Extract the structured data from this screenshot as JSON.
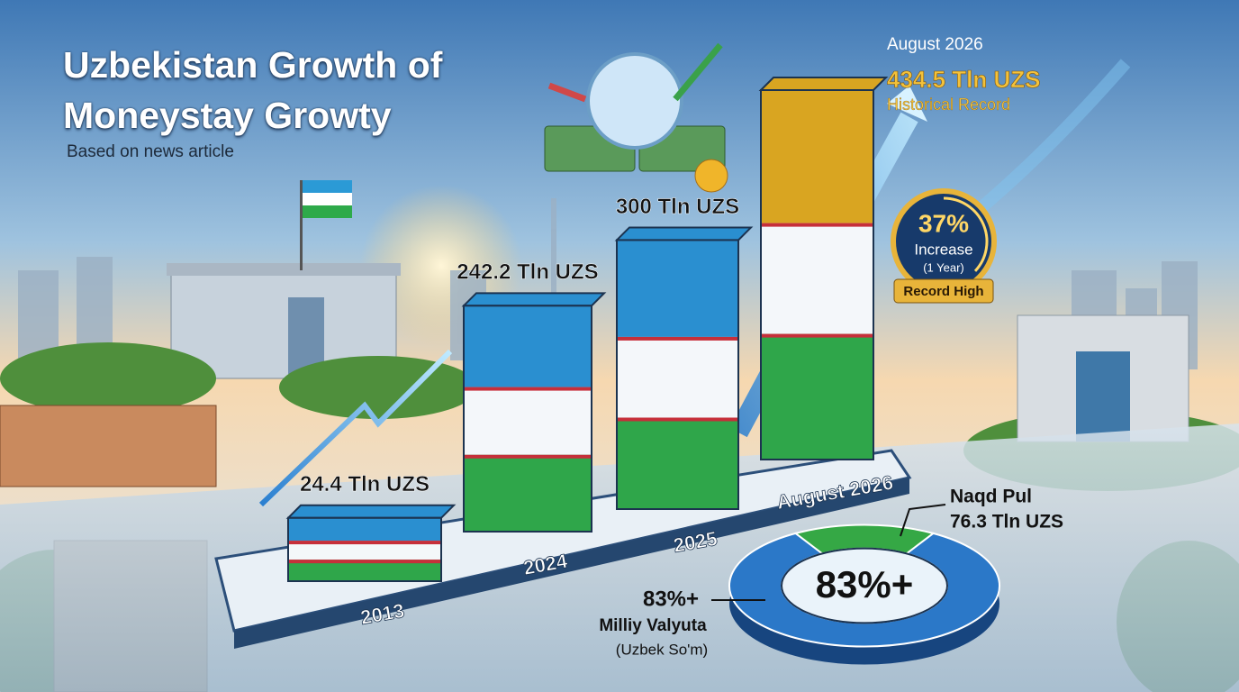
{
  "chart_data": [
    {
      "type": "bar",
      "title": "Uzbekistan Growth of Moneystay Growty",
      "subtitle": "Based on news article",
      "categories": [
        "2013",
        "2024",
        "2025",
        "August 2026"
      ],
      "values": [
        24.4,
        242.2,
        300,
        434.5
      ],
      "value_labels": [
        "24.4 Tln UZS",
        "242.2 Tln UZS",
        "300 Tln UZS",
        "434.5 Tln UZS"
      ],
      "top_colors": [
        "#2a8fd0",
        "#2a8fd0",
        "#2a8fd0",
        "#d9a521"
      ],
      "annotations": {
        "date": "August 2026",
        "record": "Historical Record",
        "badge": {
          "value": 37,
          "label": "37%",
          "line1": "Increase",
          "line2": "(1 Year)",
          "ribbon": "Record High"
        }
      }
    },
    {
      "type": "pie",
      "categories": [
        "Milliy Valyuta",
        "Naqd Pul"
      ],
      "values": [
        83,
        17
      ],
      "colors": [
        "#2b78c8",
        "#35a845"
      ],
      "center_label": {
        "value": 83,
        "label": "83%+"
      },
      "notes": [
        "(Uzbek So'm)",
        "76.3 Tln UZS"
      ]
    }
  ]
}
